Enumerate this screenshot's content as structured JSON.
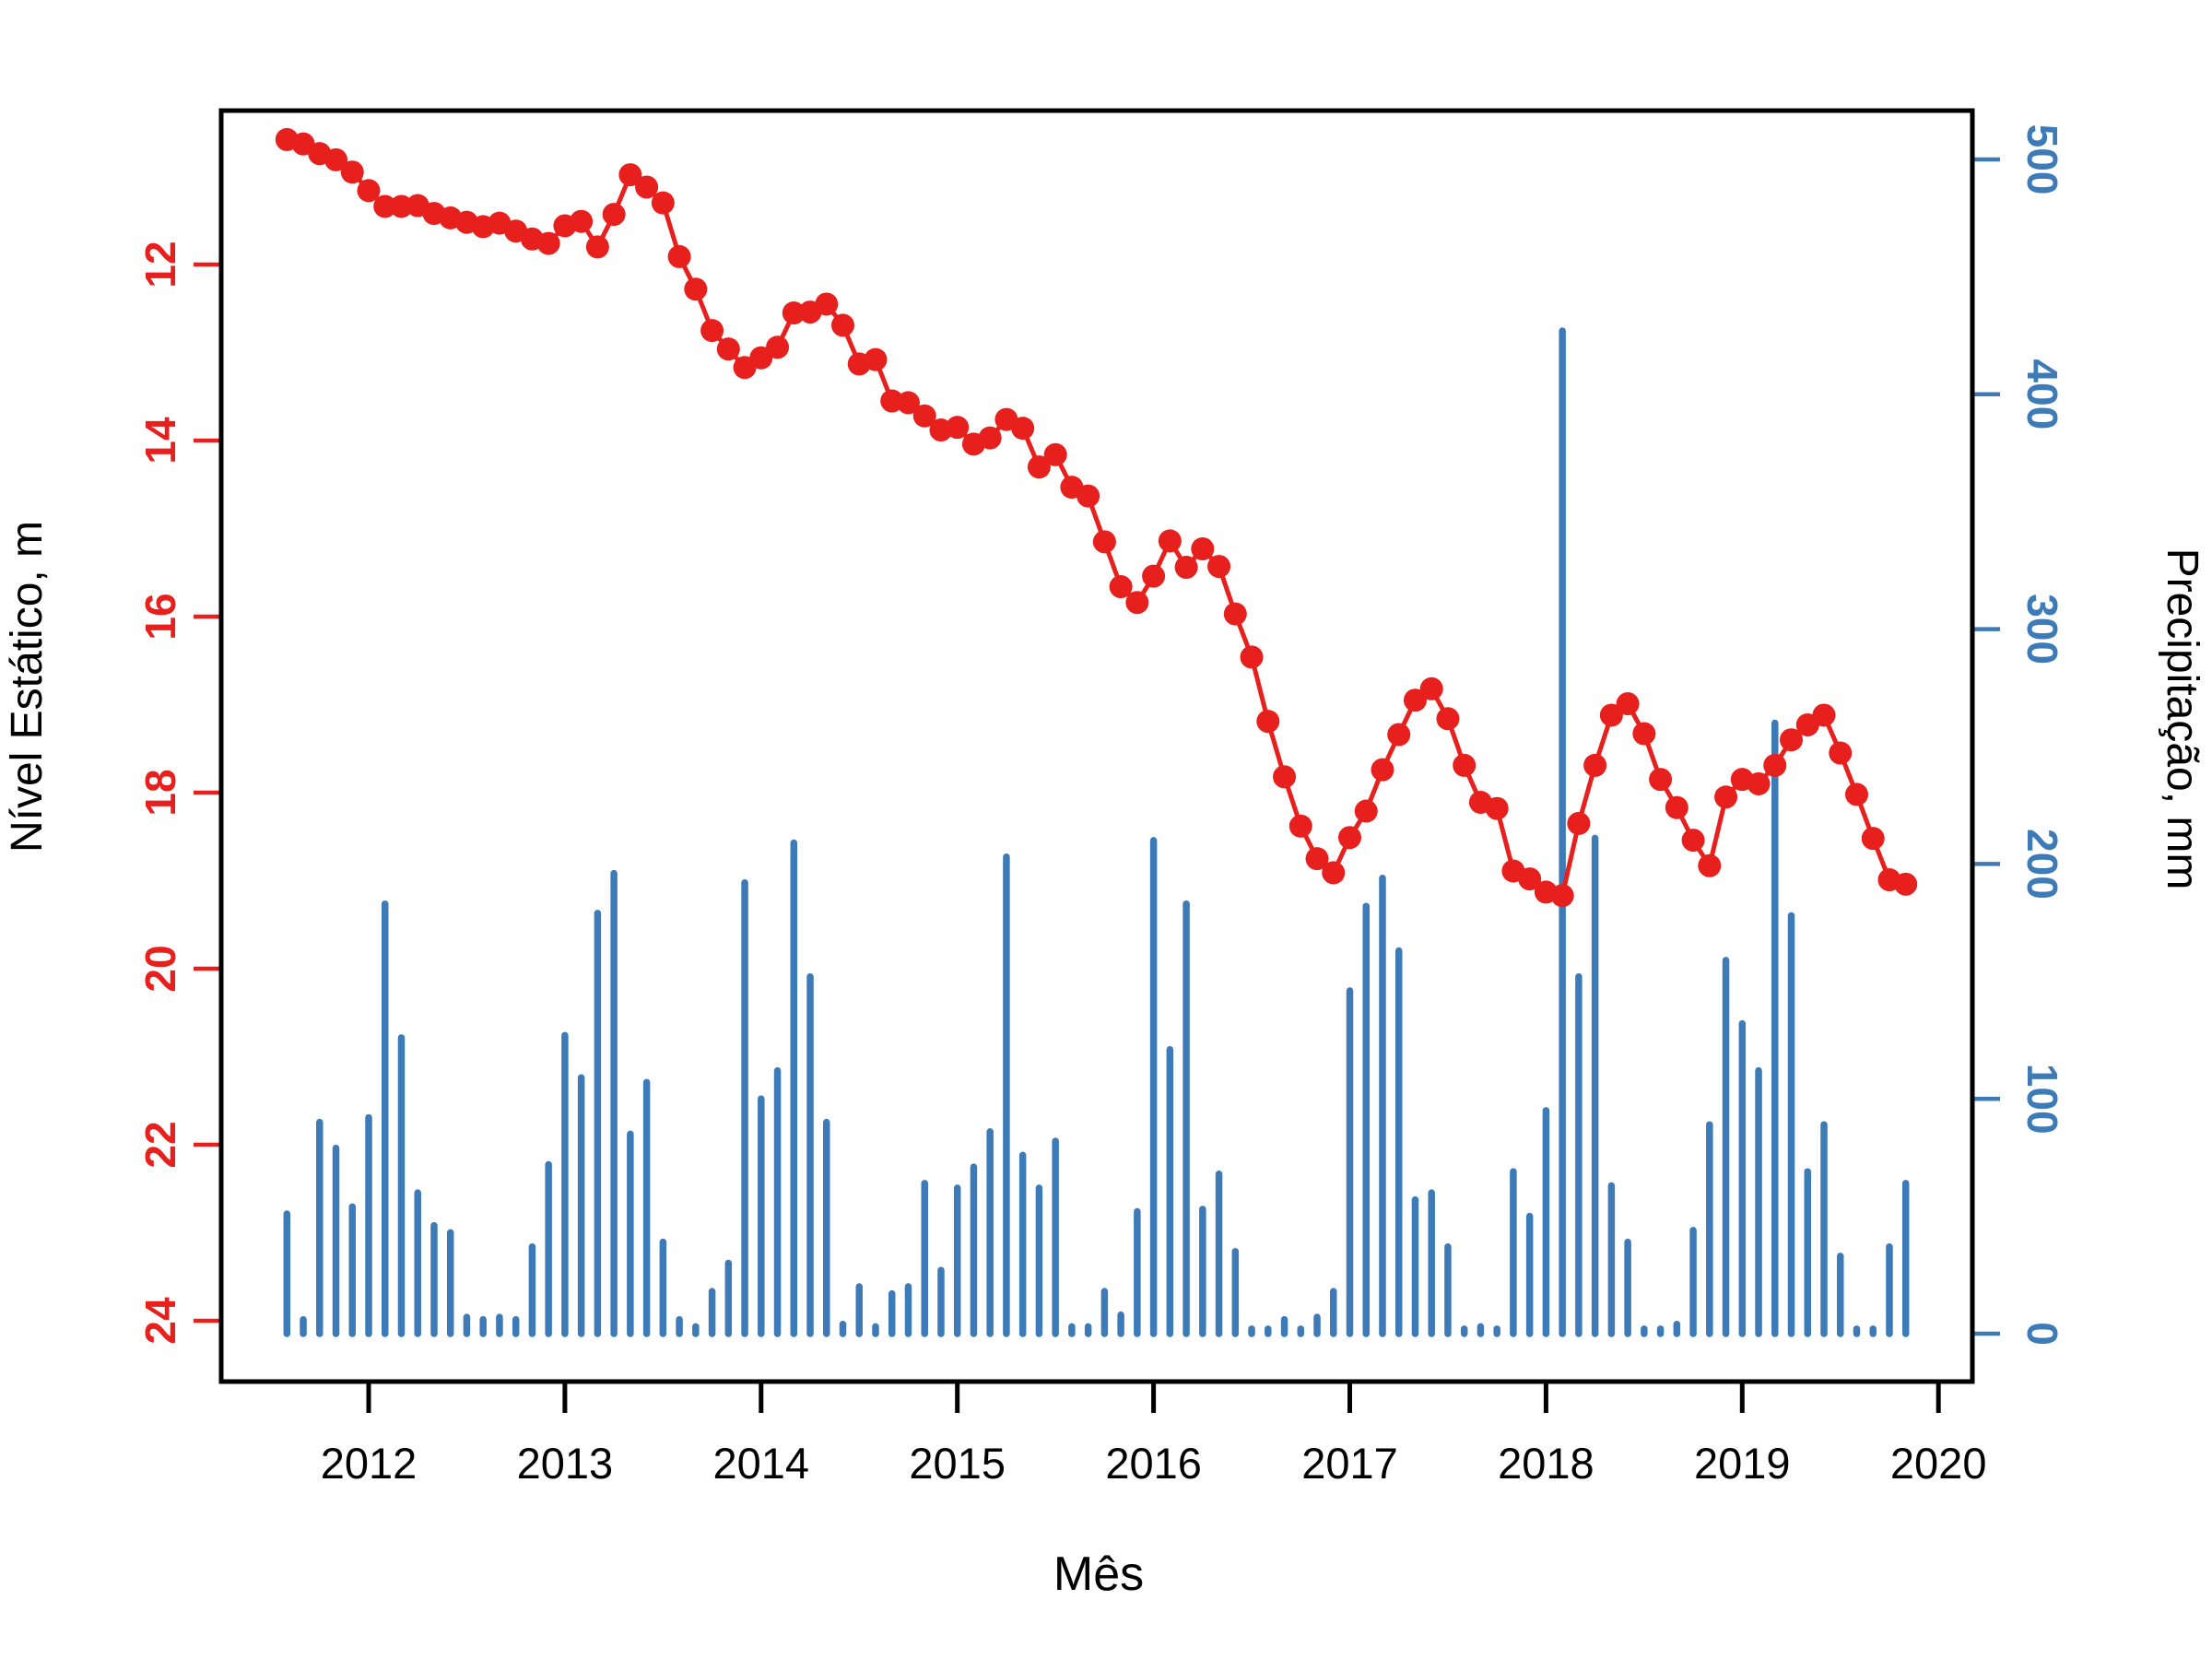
{
  "figure": {
    "background_color": "#ffffff",
    "box_color": "#000000"
  },
  "axes": {
    "left": {
      "label": "Nível Estático, m",
      "tick_labels": [
        "12",
        "14",
        "16",
        "18",
        "20",
        "22",
        "24"
      ],
      "ticks": [
        12,
        14,
        16,
        18,
        20,
        22,
        24
      ],
      "reversed": true,
      "color": "#e8201d",
      "range_note": "depth in meters, smaller values at top"
    },
    "right": {
      "label": "Precipitação, mm",
      "tick_labels": [
        "0",
        "100",
        "200",
        "300",
        "400",
        "500"
      ],
      "ticks": [
        0,
        100,
        200,
        300,
        400,
        500
      ],
      "color": "#3d7ab8"
    },
    "x": {
      "label": "Mês",
      "tick_labels": [
        "2012",
        "2013",
        "2014",
        "2015",
        "2016",
        "2017",
        "2018",
        "2019",
        "2020"
      ],
      "ticks": [
        2012,
        2013,
        2014,
        2015,
        2016,
        2017,
        2018,
        2019,
        2020
      ],
      "color": "#000000"
    }
  },
  "chart_data": {
    "type": "line+bar",
    "x_unit": "month",
    "start": {
      "year": 2011,
      "month": 8
    },
    "end": {
      "year": 2019,
      "month": 11
    },
    "grid": false,
    "legend": false,
    "series": [
      {
        "name": "Nível Estático",
        "type": "line",
        "axis": "left",
        "unit": "m",
        "color": "#e8201d",
        "marker": "filled-circle",
        "values": [
          10.58,
          10.63,
          10.74,
          10.81,
          10.95,
          11.16,
          11.34,
          11.34,
          11.33,
          11.42,
          11.47,
          11.52,
          11.57,
          11.53,
          11.62,
          11.71,
          11.76,
          11.56,
          11.51,
          11.8,
          11.43,
          10.98,
          11.12,
          11.3,
          11.91,
          12.28,
          12.75,
          12.96,
          13.17,
          13.06,
          12.94,
          12.55,
          12.54,
          12.45,
          12.69,
          13.13,
          13.08,
          13.55,
          13.57,
          13.72,
          13.88,
          13.85,
          14.04,
          13.97,
          13.76,
          13.86,
          14.3,
          14.16,
          14.53,
          14.63,
          15.15,
          15.66,
          15.84,
          15.54,
          15.14,
          15.44,
          15.23,
          15.43,
          15.97,
          16.46,
          17.19,
          17.82,
          18.38,
          18.75,
          18.91,
          18.51,
          18.21,
          17.74,
          17.34,
          16.95,
          16.82,
          17.16,
          17.69,
          18.11,
          18.18,
          18.89,
          18.98,
          19.13,
          19.17,
          18.35,
          17.69,
          17.12,
          16.99,
          17.33,
          17.85,
          18.17,
          18.54,
          18.83,
          18.05,
          17.85,
          17.9,
          17.69,
          17.4,
          17.23,
          17.12,
          17.55,
          18.02,
          18.52,
          18.99,
          19.04
        ]
      },
      {
        "name": "Precipitação",
        "type": "bar",
        "axis": "right",
        "unit": "mm",
        "color": "#3d7ab8",
        "values": [
          51,
          6,
          90,
          79,
          54,
          92,
          183,
          126,
          60,
          46,
          43,
          7,
          6,
          7,
          6,
          37,
          72,
          127,
          109,
          179,
          196,
          85,
          107,
          39,
          6,
          3,
          18,
          30,
          192,
          100,
          112,
          209,
          152,
          90,
          4,
          20,
          3,
          17,
          20,
          64,
          27,
          62,
          71,
          86,
          203,
          76,
          62,
          82,
          3,
          3,
          18,
          8,
          52,
          210,
          121,
          183,
          53,
          68,
          35,
          2,
          2,
          6,
          2,
          7,
          18,
          146,
          182,
          194,
          163,
          57,
          60,
          37,
          2,
          3,
          2,
          69,
          50,
          95,
          427,
          152,
          211,
          63,
          39,
          2,
          2,
          4,
          44,
          89,
          159,
          132,
          112,
          260,
          178,
          69,
          89,
          33,
          2,
          2,
          37,
          64
        ]
      }
    ],
    "xlim": [
      2011.25,
      2020.17
    ],
    "left_ylim_top_to_bottom": [
      10.25,
      24.72
    ],
    "right_ylim": [
      0,
      520
    ]
  }
}
